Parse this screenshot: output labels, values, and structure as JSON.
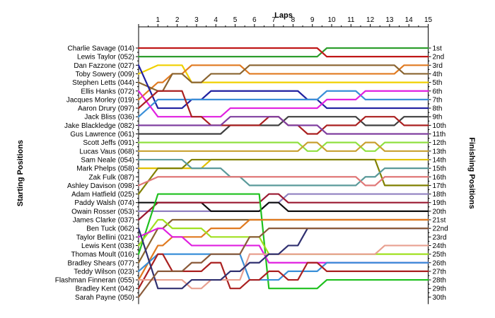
{
  "chart_data": {
    "type": "line",
    "title": "",
    "xlabel": "Laps",
    "ylabel_left": "Starting Positions",
    "ylabel_right": "Finishing Positions",
    "x_ticks": [
      "1",
      "2",
      "3",
      "4",
      "5",
      "6",
      "7",
      "8",
      "9",
      "10",
      "11",
      "12",
      "13",
      "14",
      "15"
    ],
    "xlim": [
      0,
      15
    ],
    "ylim": [
      1,
      30
    ],
    "grid": false,
    "legend": "none",
    "starting_labels": [
      "Charlie Savage (014)",
      "Lewis Taylor (052)",
      "Dan Fazzone (027)",
      "Toby Sowery (009)",
      "Stephen Letts (044)",
      "Ellis Hanks (072)",
      "Jacques Morley (019)",
      "Aaron Drury (097)",
      "Jack Bliss (036)",
      "Jake Blackledge (082)",
      "Gus Lawrence (061)",
      "Scott Jeffs (091)",
      "Lucas Vaus (068)",
      "Sam Neale (054)",
      "Mark Phelps (058)",
      "Zak Fulk (087)",
      "Ashley Davison (098)",
      "Adam Hatfield (025)",
      "Paddy Walsh (074)",
      "Owain Rosser (053)",
      "James Clarke (037)",
      "Ben Tuck (062)",
      "Taylor Bellini (021)",
      "Lewis Kent (038)",
      "Thomas Moult (016)",
      "Bradley Shears (077)",
      "Teddy Wilson (023)",
      "Flashman Finneran (055)",
      "Bradley Kent (042)",
      "Sarah Payne (050)"
    ],
    "finishing_labels": [
      "1st",
      "2nd",
      "3rd",
      "4th",
      "5th",
      "6th",
      "7th",
      "8th",
      "9th",
      "10th",
      "11th",
      "12th",
      "13th",
      "14th",
      "15th",
      "16th",
      "17th",
      "18th",
      "19th",
      "20th",
      "21st",
      "22nd",
      "23rd",
      "24th",
      "25th",
      "26th",
      "27th",
      "28th",
      "29th",
      "30th"
    ],
    "series": [
      {
        "color": "#2e9e2e",
        "positions": [
          2,
          2,
          2,
          2,
          2,
          2,
          2,
          2,
          2,
          2,
          1,
          1,
          1,
          1,
          1,
          1
        ]
      },
      {
        "color": "#c01818",
        "positions": [
          1,
          1,
          1,
          1,
          1,
          1,
          1,
          1,
          1,
          1,
          2,
          2,
          2,
          2,
          2,
          2
        ]
      },
      {
        "color": "#f0d000",
        "positions": [
          4,
          3,
          3,
          5,
          5,
          5,
          5,
          5,
          5,
          5,
          5,
          5,
          5,
          5,
          5,
          5
        ]
      },
      {
        "color": "#e07a20",
        "positions": [
          7,
          5,
          4,
          3,
          3,
          3,
          4,
          4,
          4,
          4,
          4,
          4,
          4,
          4,
          3,
          3
        ]
      },
      {
        "color": "#8a6430",
        "positions": [
          5,
          6,
          4,
          5,
          4,
          4,
          3,
          3,
          3,
          3,
          3,
          3,
          3,
          3,
          4,
          4
        ]
      },
      {
        "color": "#2020a0",
        "positions": [
          3,
          8,
          8,
          7,
          6,
          6,
          6,
          6,
          6,
          7,
          8,
          8,
          8,
          8,
          8,
          8
        ]
      },
      {
        "color": "#3a8fd8",
        "positions": [
          9,
          7,
          7,
          7,
          7,
          7,
          7,
          7,
          7,
          7,
          6,
          6,
          7,
          7,
          7,
          7
        ]
      },
      {
        "color": "#e020e0",
        "positions": [
          6,
          9,
          9,
          9,
          9,
          8,
          8,
          8,
          8,
          8,
          7,
          7,
          6,
          6,
          6,
          6
        ]
      },
      {
        "color": "#404040",
        "positions": [
          11,
          11,
          11,
          11,
          11,
          10,
          10,
          10,
          9,
          9,
          9,
          9,
          10,
          10,
          9,
          9
        ]
      },
      {
        "color": "#aa2020",
        "positions": [
          8,
          6,
          6,
          9,
          10,
          10,
          10,
          9,
          10,
          11,
          10,
          10,
          9,
          9,
          10,
          10
        ]
      },
      {
        "color": "#8040a0",
        "positions": [
          10,
          10,
          10,
          10,
          10,
          9,
          9,
          9,
          10,
          10,
          11,
          11,
          11,
          11,
          11,
          11
        ]
      },
      {
        "color": "#90e040",
        "positions": [
          12,
          12,
          12,
          12,
          12,
          12,
          12,
          12,
          12,
          13,
          12,
          12,
          13,
          12,
          12,
          12
        ]
      },
      {
        "color": "#c8a030",
        "positions": [
          13,
          13,
          13,
          13,
          13,
          13,
          13,
          13,
          13,
          12,
          13,
          13,
          12,
          13,
          13,
          13
        ]
      },
      {
        "color": "#e0c000",
        "positions": [
          15,
          15,
          15,
          15,
          14,
          14,
          14,
          14,
          14,
          14,
          14,
          14,
          14,
          14,
          14,
          14
        ]
      },
      {
        "color": "#808000",
        "positions": [
          18,
          15,
          15,
          14,
          14,
          14,
          14,
          14,
          14,
          14,
          14,
          14,
          14,
          17,
          17,
          17
        ]
      },
      {
        "color": "#5a9a9a",
        "positions": [
          14,
          14,
          14,
          15,
          15,
          16,
          17,
          17,
          17,
          17,
          17,
          17,
          16,
          15,
          15,
          15
        ]
      },
      {
        "color": "#e07878",
        "positions": [
          17,
          16,
          16,
          16,
          16,
          16,
          16,
          16,
          16,
          16,
          16,
          16,
          17,
          16,
          16,
          16
        ]
      },
      {
        "color": "#9080c0",
        "positions": [
          20,
          20,
          20,
          20,
          20,
          20,
          20,
          19,
          18,
          18,
          18,
          18,
          18,
          18,
          18,
          18
        ]
      },
      {
        "color": "#101010",
        "positions": [
          19,
          19,
          19,
          19,
          20,
          20,
          20,
          19,
          20,
          20,
          20,
          20,
          20,
          20,
          20,
          20
        ]
      },
      {
        "color": "#9a1830",
        "positions": [
          21,
          19,
          19,
          19,
          19,
          19,
          19,
          18,
          19,
          19,
          19,
          19,
          19,
          19,
          19,
          19
        ]
      },
      {
        "color": "#1ec01e",
        "positions": [
          25,
          18,
          18,
          18,
          18,
          18,
          18,
          29,
          29,
          29,
          28,
          28,
          28,
          28,
          28,
          28
        ]
      },
      {
        "color": "#8a6430",
        "positions": [
          26,
          22,
          21,
          21,
          21,
          21,
          21,
          21,
          21,
          21,
          21,
          21,
          21,
          21,
          21,
          21
        ]
      },
      {
        "color": "#e07a20",
        "positions": [
          28,
          24,
          23,
          23,
          22,
          22,
          21,
          21,
          21,
          21,
          21,
          21,
          21,
          21,
          21,
          21
        ]
      },
      {
        "color": "#a0e020",
        "positions": [
          24,
          21,
          22,
          22,
          23,
          23,
          23,
          25,
          25,
          25,
          25,
          25,
          25,
          25,
          25,
          25
        ]
      },
      {
        "color": "#e020e0",
        "positions": [
          23,
          22,
          23,
          24,
          24,
          24,
          24,
          26,
          26,
          26,
          26,
          26,
          26,
          26,
          26,
          26
        ]
      },
      {
        "color": "#3a8fd8",
        "positions": [
          27,
          25,
          25,
          25,
          25,
          25,
          28,
          28,
          27,
          27,
          26,
          26,
          26,
          26,
          26,
          26
        ]
      },
      {
        "color": "#aa2020",
        "positions": [
          29,
          25,
          27,
          27,
          26,
          29,
          28,
          27,
          28,
          26,
          27,
          27,
          27,
          27,
          27,
          27
        ]
      },
      {
        "color": "#e8a090",
        "positions": [
          28,
          28,
          28,
          29,
          28,
          28,
          25,
          25,
          25,
          25,
          25,
          25,
          25,
          24,
          24,
          24
        ]
      },
      {
        "color": "#303070",
        "positions": [
          22,
          29,
          29,
          28,
          28,
          27,
          26,
          25,
          24,
          22,
          22,
          22,
          22,
          22,
          22,
          22
        ]
      },
      {
        "color": "#8a5a3a",
        "positions": [
          30,
          27,
          27,
          26,
          25,
          25,
          23,
          22,
          22,
          22,
          22,
          22,
          22,
          22,
          22,
          22
        ]
      }
    ]
  }
}
